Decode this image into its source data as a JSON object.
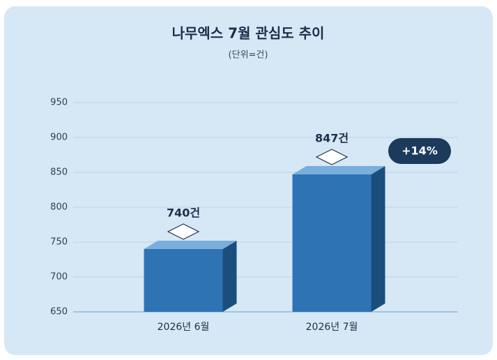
{
  "chart_data": {
    "type": "bar",
    "title": "나무엑스 7월 관심도 추이",
    "subtitle": "(단위=건)",
    "categories": [
      "2026년 6월",
      "2026년 7월"
    ],
    "values": [
      740,
      847
    ],
    "value_labels": [
      "740건",
      "847건"
    ],
    "annotation": "+14%",
    "color": "#2e74b5",
    "ylim": [
      650,
      950
    ],
    "yticks": [
      650,
      700,
      750,
      800,
      850,
      900,
      950
    ],
    "grid": true
  }
}
